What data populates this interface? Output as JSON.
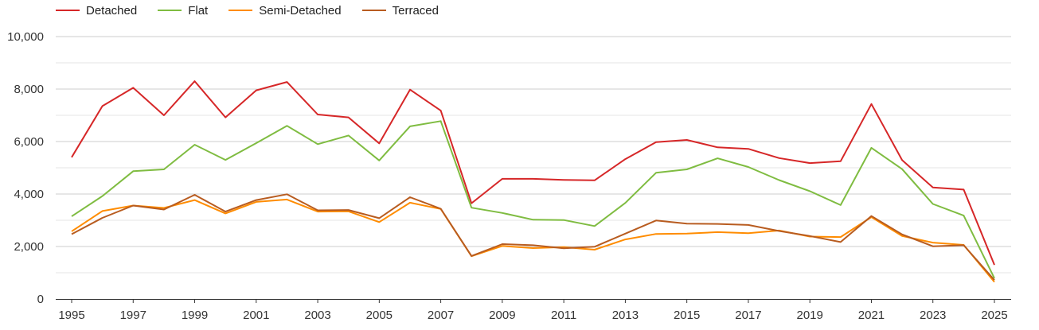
{
  "chart_data": {
    "type": "line",
    "title": "",
    "xlabel": "",
    "ylabel": "",
    "x": [
      1995,
      1996,
      1997,
      1998,
      1999,
      2000,
      2001,
      2002,
      2003,
      2004,
      2005,
      2006,
      2007,
      2008,
      2009,
      2010,
      2011,
      2012,
      2013,
      2014,
      2015,
      2016,
      2017,
      2018,
      2019,
      2020,
      2021,
      2022,
      2023,
      2024,
      2025
    ],
    "x_tick_labels": [
      "1995",
      "1997",
      "1999",
      "2001",
      "2003",
      "2005",
      "2007",
      "2009",
      "2011",
      "2013",
      "2015",
      "2017",
      "2019",
      "2021",
      "2023",
      "2025"
    ],
    "y_tick_labels": [
      "0",
      "2,000",
      "4,000",
      "6,000",
      "8,000",
      "10,000"
    ],
    "y_ticks": [
      0,
      2000,
      4000,
      6000,
      8000,
      10000
    ],
    "ylim": [
      0,
      10000
    ],
    "grid": true,
    "legend_position": "top-left",
    "series": [
      {
        "name": "Detached",
        "color": "#d62728",
        "values": [
          5400,
          7350,
          8050,
          7000,
          8300,
          6920,
          7950,
          8270,
          7030,
          6920,
          5930,
          7980,
          7180,
          3650,
          4580,
          4580,
          4540,
          4520,
          5330,
          5980,
          6060,
          5780,
          5720,
          5370,
          5180,
          5250,
          7430,
          5290,
          4250,
          4170,
          1300
        ]
      },
      {
        "name": "Flat",
        "color": "#7fbc41",
        "values": [
          3150,
          3920,
          4870,
          4940,
          5880,
          5300,
          5940,
          6600,
          5900,
          6230,
          5280,
          6580,
          6780,
          3480,
          3280,
          3020,
          3010,
          2780,
          3660,
          4810,
          4940,
          5360,
          5030,
          4530,
          4110,
          3580,
          5760,
          4950,
          3620,
          3180,
          790
        ]
      },
      {
        "name": "Semi-Detached",
        "color": "#ff8c00",
        "values": [
          2580,
          3350,
          3560,
          3470,
          3770,
          3260,
          3700,
          3790,
          3330,
          3340,
          2930,
          3670,
          3430,
          1630,
          2020,
          1940,
          1980,
          1880,
          2270,
          2480,
          2490,
          2550,
          2510,
          2610,
          2380,
          2360,
          3120,
          2400,
          2150,
          2060,
          650
        ]
      },
      {
        "name": "Terraced",
        "color": "#b85c20",
        "values": [
          2470,
          3090,
          3560,
          3410,
          3970,
          3330,
          3770,
          3990,
          3380,
          3390,
          3080,
          3880,
          3440,
          1640,
          2090,
          2050,
          1930,
          1990,
          2490,
          2990,
          2870,
          2860,
          2820,
          2590,
          2400,
          2170,
          3160,
          2460,
          2010,
          2050,
          720
        ]
      }
    ]
  }
}
